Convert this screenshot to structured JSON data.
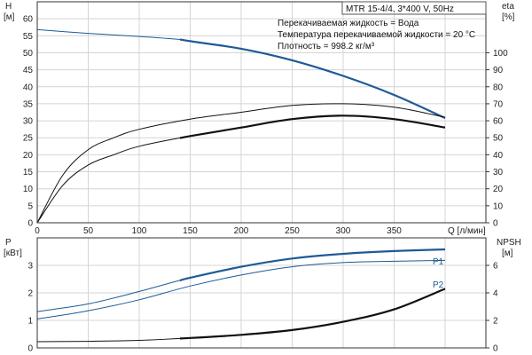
{
  "chart_data": [
    {
      "type": "line",
      "title_box": "MTR 15-4/4, 3*400 V, 50Hz",
      "info_lines": [
        "Перекачиваемая жидкость = Вода",
        "Температура перекачиваемой жидкости = 20 °C",
        "Плотность = 998.2 кг/м³"
      ],
      "xlabel": "Q [л/мин]",
      "x_ticks": [
        "0",
        "50",
        "100",
        "150",
        "200",
        "250",
        "300",
        "350"
      ],
      "xlim": [
        0,
        440
      ],
      "left_axis": {
        "label_top": "H",
        "label_unit": "[м]",
        "ylim": [
          0,
          65
        ],
        "ticks": [
          "0",
          "5",
          "10",
          "15",
          "20",
          "25",
          "30",
          "35",
          "40",
          "45",
          "50",
          "55",
          "60"
        ]
      },
      "right_axis": {
        "label_top": "eta",
        "label_unit": "[%]",
        "ylim": [
          0,
          130
        ],
        "ticks": [
          "0",
          "10",
          "20",
          "30",
          "40",
          "50",
          "60",
          "70",
          "80",
          "90",
          "100"
        ]
      },
      "grid": true,
      "series": [
        {
          "axis": "left",
          "color": "#1f5a96",
          "x": [
            0,
            50,
            100,
            140,
            150,
            200,
            250,
            300,
            350,
            400
          ],
          "y": [
            56.8,
            55.7,
            54.8,
            53.9,
            53.4,
            51.2,
            47.8,
            43.2,
            37.6,
            30.8
          ],
          "highlight_from": 140
        },
        {
          "axis": "right",
          "color": "#111111",
          "x": [
            0,
            25,
            50,
            75,
            100,
            150,
            200,
            250,
            300,
            350,
            400
          ],
          "y": [
            0,
            28,
            43,
            50,
            55,
            61,
            65,
            69,
            70,
            68,
            62
          ],
          "highlight_from": null
        },
        {
          "axis": "right",
          "color": "#111111",
          "x": [
            0,
            25,
            50,
            75,
            100,
            150,
            200,
            250,
            300,
            350,
            400
          ],
          "y": [
            0,
            22,
            34,
            40,
            45,
            51,
            56,
            61,
            63,
            61,
            56
          ],
          "highlight_from": 140
        }
      ]
    },
    {
      "type": "line",
      "xlim": [
        0,
        440
      ],
      "x_ticks": [],
      "left_axis": {
        "label_top": "P",
        "label_unit": "[кВт]",
        "ylim": [
          0,
          4
        ],
        "ticks": [
          "0",
          "1",
          "2",
          "3"
        ]
      },
      "right_axis": {
        "label_top": "NPSH",
        "label_unit": "[м]",
        "ylim": [
          0,
          8
        ],
        "ticks": [
          "0",
          "2",
          "4",
          "6"
        ]
      },
      "grid": true,
      "series": [
        {
          "name": "P1",
          "axis": "left",
          "color": "#1f5a96",
          "x": [
            0,
            50,
            100,
            150,
            200,
            250,
            300,
            350,
            400
          ],
          "y": [
            1.32,
            1.6,
            2.05,
            2.55,
            2.95,
            3.25,
            3.42,
            3.52,
            3.58
          ],
          "highlight_from": 140
        },
        {
          "name": "P2",
          "axis": "left",
          "color": "#1f5a96",
          "x": [
            0,
            50,
            100,
            150,
            200,
            250,
            300,
            350,
            400
          ],
          "y": [
            1.05,
            1.35,
            1.75,
            2.25,
            2.65,
            2.95,
            3.1,
            3.15,
            3.18
          ],
          "highlight_from": null
        },
        {
          "axis": "right",
          "color": "#111111",
          "x": [
            0,
            50,
            100,
            150,
            200,
            250,
            300,
            350,
            400
          ],
          "y": [
            0.45,
            0.48,
            0.55,
            0.72,
            0.95,
            1.3,
            1.9,
            2.8,
            4.3
          ],
          "highlight_from": 140
        }
      ]
    }
  ]
}
